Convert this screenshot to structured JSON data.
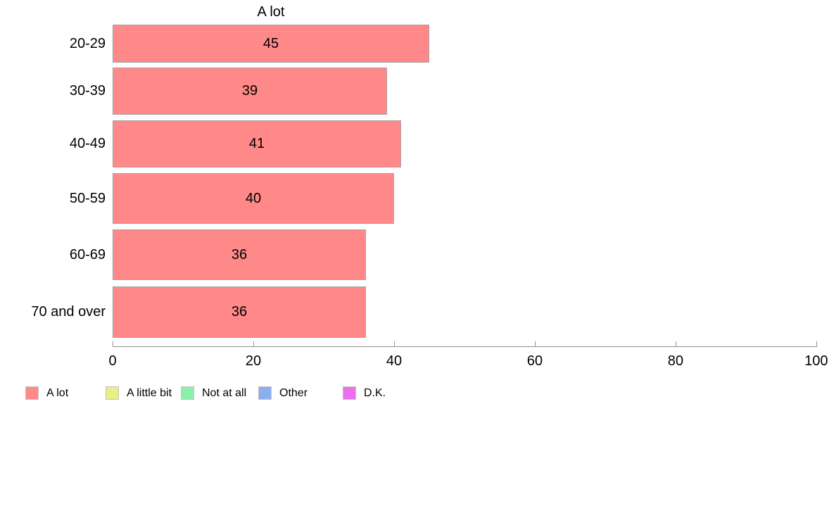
{
  "chart_data": {
    "type": "bar",
    "orientation": "horizontal",
    "title": "A lot",
    "categories": [
      "20-29",
      "30-39",
      "40-49",
      "50-59",
      "60-69",
      "70 and over"
    ],
    "values": [
      45,
      39,
      41,
      40,
      36,
      36
    ],
    "xlabel": "",
    "ylabel": "",
    "xlim": [
      0,
      100
    ],
    "x_ticks": [
      0,
      20,
      40,
      60,
      80,
      100
    ],
    "grid": false,
    "value_labels": "centered inside bars",
    "bar_color": "#ff8888",
    "bar_border_color": "#ab9f9f",
    "axis_color": "#8f8f8f",
    "legend_position": "bottom-left",
    "legend": [
      {
        "label": "A lot",
        "color": "#ff8888"
      },
      {
        "label": "A little bit",
        "color": "#e6f087"
      },
      {
        "label": "Not at all",
        "color": "#8df0aa"
      },
      {
        "label": "Other",
        "color": "#8cadee"
      },
      {
        "label": "D.K.",
        "color": "#ee6fee"
      }
    ]
  }
}
